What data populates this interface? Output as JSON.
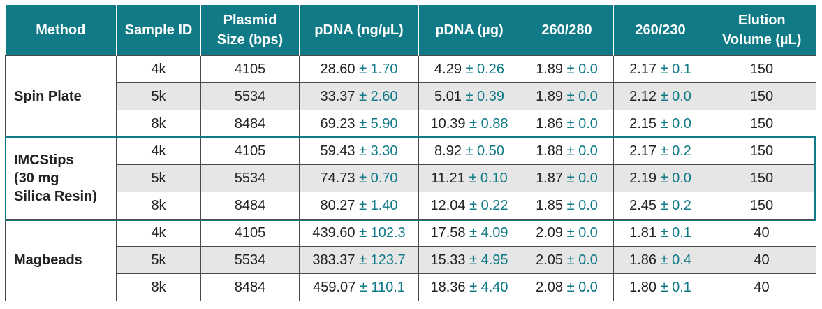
{
  "header": [
    "Method",
    "Sample ID",
    "Plasmid\nSize (bps)",
    "pDNA (ng/µL)",
    "pDNA  (µg)",
    "260/280",
    "260/230",
    "Elution\nVolume (µL)"
  ],
  "groups": [
    {
      "method": "Spin Plate",
      "rows": [
        {
          "id": "4k",
          "size": "4105",
          "ng": "28.60",
          "ng_sd": "± 1.70",
          "ug": "4.29",
          "ug_sd": "± 0.26",
          "r280": "1.89",
          "r280_sd": "± 0.0",
          "r230": "2.17",
          "r230_sd": "± 0.1",
          "elution": "150"
        },
        {
          "id": "5k",
          "size": "5534",
          "ng": "33.37",
          "ng_sd": "± 2.60",
          "ug": "5.01",
          "ug_sd": "± 0.39",
          "r280": "1.89",
          "r280_sd": "± 0.0",
          "r230": "2.12",
          "r230_sd": "± 0.0",
          "elution": "150"
        },
        {
          "id": "8k",
          "size": "8484",
          "ng": "69.23",
          "ng_sd": "± 5.90",
          "ug": "10.39",
          "ug_sd": "± 0.88",
          "r280": "1.86",
          "r280_sd": "± 0.0",
          "r230": "2.15",
          "r230_sd": "± 0.0",
          "elution": "150"
        }
      ]
    },
    {
      "method": "IMCStips\n(30 mg\nSilica Resin)",
      "rows": [
        {
          "id": "4k",
          "size": "4105",
          "ng": "59.43",
          "ng_sd": "± 3.30",
          "ug": "8.92",
          "ug_sd": "± 0.50",
          "r280": "1.88",
          "r280_sd": "± 0.0",
          "r230": "2.17",
          "r230_sd": "± 0.2",
          "elution": "150"
        },
        {
          "id": "5k",
          "size": "5534",
          "ng": "74.73",
          "ng_sd": "± 0.70",
          "ug": "11.21",
          "ug_sd": "± 0.10",
          "r280": "1.87",
          "r280_sd": "± 0.0",
          "r230": "2.19",
          "r230_sd": "± 0.0",
          "elution": "150"
        },
        {
          "id": "8k",
          "size": "8484",
          "ng": "80.27",
          "ng_sd": "± 1.40",
          "ug": "12.04",
          "ug_sd": "± 0.22",
          "r280": "1.85",
          "r280_sd": "± 0.0",
          "r230": "2.45",
          "r230_sd": "± 0.2",
          "elution": "150"
        }
      ]
    },
    {
      "method": "Magbeads",
      "rows": [
        {
          "id": "4k",
          "size": "4105",
          "ng": "439.60",
          "ng_sd": "± 102.3",
          "ug": "17.58",
          "ug_sd": "± 4.09",
          "r280": "2.09",
          "r280_sd": "± 0.0",
          "r230": "1.81",
          "r230_sd": "± 0.1",
          "elution": "40"
        },
        {
          "id": "5k",
          "size": "5534",
          "ng": "383.37",
          "ng_sd": "± 123.7",
          "ug": "15.33",
          "ug_sd": "± 4.95",
          "r280": "2.05",
          "r280_sd": "± 0.0",
          "r230": "1.86",
          "r230_sd": "± 0.4",
          "elution": "40"
        },
        {
          "id": "8k",
          "size": "8484",
          "ng": "459.07",
          "ng_sd": "± 110.1",
          "ug": "18.36",
          "ug_sd": "± 4.40",
          "r280": "2.08",
          "r280_sd": "± 0.0",
          "r230": "1.80",
          "r230_sd": "± 0.1",
          "elution": "40"
        }
      ]
    }
  ],
  "colors": {
    "header_bg": "#107a87",
    "sd_text": "#107a87",
    "shade": "#e6e6e6",
    "highlight_border": "#107a87"
  }
}
